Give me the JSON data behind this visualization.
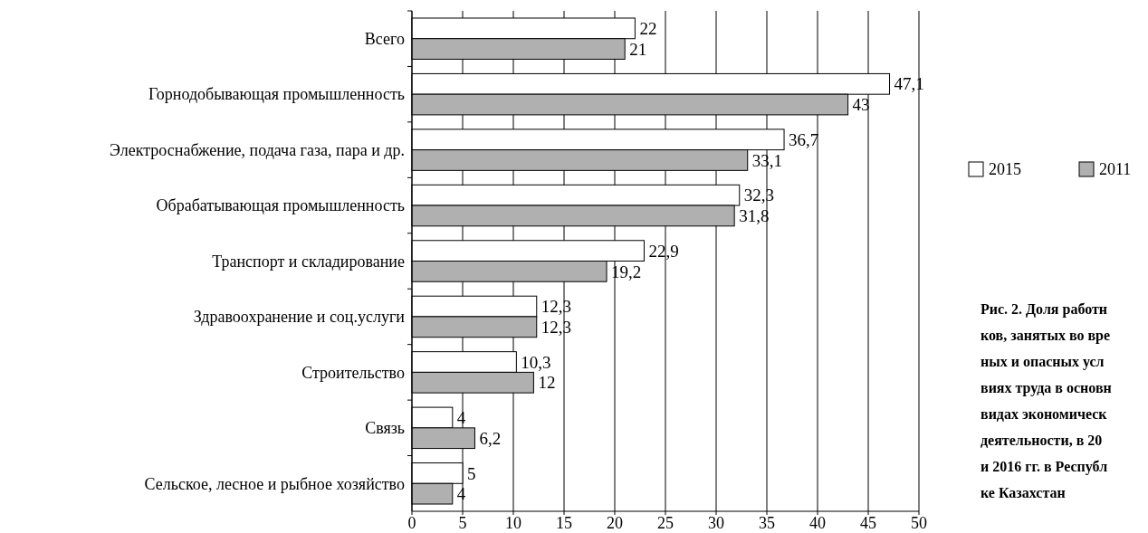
{
  "chart_data": {
    "type": "bar",
    "orientation": "horizontal",
    "categories": [
      "Всего",
      "Горнодобывающая промышленность",
      "Электроснабжение, подача газа, пара и др.",
      "Обрабатывающая промышленность",
      "Транспорт и складирование",
      "Здравоохранение и соц.услуги",
      "Строительство",
      "Связь",
      "Сельское, лесное и рыбное хозяйство"
    ],
    "series": [
      {
        "name": "2015",
        "color": "#ffffff",
        "values": [
          22,
          47.1,
          36.7,
          32.3,
          22.9,
          12.3,
          10.3,
          4,
          5
        ],
        "value_labels": [
          "22",
          "47,1",
          "36,7",
          "32,3",
          "22,9",
          "12,3",
          "10,3",
          "4",
          "5"
        ]
      },
      {
        "name": "2011",
        "color": "#b0b0b0",
        "values": [
          21,
          43,
          33.1,
          31.8,
          19.2,
          12.3,
          12,
          6.2,
          4
        ],
        "value_labels": [
          "21",
          "43",
          "33,1",
          "31,8",
          "19,2",
          "12,3",
          "12",
          "6,2",
          "4"
        ]
      }
    ],
    "xlim": [
      0,
      50
    ],
    "xticks": [
      0,
      5,
      10,
      15,
      20,
      25,
      30,
      35,
      40,
      45,
      50
    ],
    "grid": "x",
    "legend": "right",
    "annotations": [
      "Рис. 2. Доля работн\nков, занятых во вре\nных и опасных усл\nвиях труда в основн\nвидах экономическ\nдеятельности, в 20\nи 2016 гг. в Республ\nке Казахстан"
    ]
  }
}
